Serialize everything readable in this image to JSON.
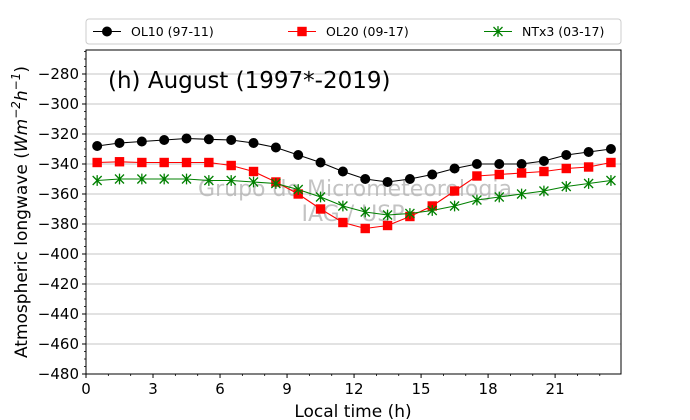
{
  "chart_data": {
    "type": "line",
    "title": "(h) August (1997*-2019)",
    "xlabel": "Local time (h)",
    "ylabel_main": "Atmospheric longwave (",
    "ylabel_unit_W": "Wm",
    "ylabel_unit_exp1": "−2",
    "ylabel_unit_h": "h",
    "ylabel_unit_exp2": "−1",
    "ylabel_close": ")",
    "xlim": [
      0,
      23.95
    ],
    "ylim": [
      -480,
      -264
    ],
    "xticks": [
      0,
      3,
      6,
      9,
      12,
      15,
      18,
      21
    ],
    "yticks": [
      -480,
      -460,
      -440,
      -420,
      -400,
      -380,
      -360,
      -340,
      -320,
      -300,
      -280
    ],
    "grid": "horizontal",
    "legend_position": "top",
    "watermark_line1": "Grupo de Micrometeorologia",
    "watermark_line2": "IAG / USP",
    "x": [
      0.5,
      1.5,
      2.5,
      3.5,
      4.5,
      5.5,
      6.5,
      7.5,
      8.5,
      9.5,
      10.5,
      11.5,
      12.5,
      13.5,
      14.5,
      15.5,
      16.5,
      17.5,
      18.5,
      19.5,
      20.5,
      21.5,
      22.5,
      23.5
    ],
    "series": [
      {
        "name": "OL10 (97-11)",
        "color": "#000000",
        "marker": "circle",
        "values": [
          -328,
          -326,
          -325,
          -324,
          -323,
          -323.5,
          -324,
          -326,
          -329,
          -334,
          -339,
          -345,
          -350,
          -352,
          -350,
          -347,
          -343,
          -340,
          -340,
          -340,
          -338,
          -334,
          -332,
          -330
        ]
      },
      {
        "name": "OL20 (09-17)",
        "color": "#ff0000",
        "marker": "square",
        "values": [
          -339,
          -338.5,
          -339,
          -339,
          -339,
          -339,
          -341,
          -345,
          -352,
          -360,
          -370,
          -379,
          -383,
          -381,
          -375,
          -368,
          -358,
          -348,
          -347,
          -346,
          -345,
          -343,
          -342,
          -339
        ]
      },
      {
        "name": "NTx3 (03-17)",
        "color": "#008000",
        "marker": "x-star",
        "values": [
          -351,
          -350,
          -350,
          -350,
          -350,
          -351,
          -351,
          -352,
          -353,
          -357,
          -362,
          -368,
          -372,
          -374,
          -373,
          -371,
          -368,
          -364,
          -362,
          -360,
          -358,
          -355,
          -353,
          -351
        ]
      }
    ]
  }
}
